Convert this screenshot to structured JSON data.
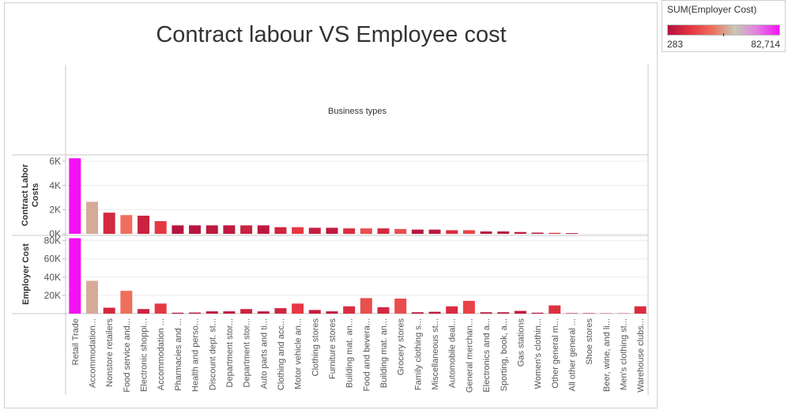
{
  "chart_data": {
    "type": "bar",
    "title": "Contract labour VS Employee cost",
    "column_header": "Business types",
    "categories": [
      "Retail Trade",
      "Accommodation...",
      "Nonstore retailers",
      "Food service and...",
      "Electronic shoppi...",
      "Accommodation ...",
      "Pharmacies and ...",
      "Health and perso...",
      "Discount dept. st...",
      "Department stor...",
      "Department stor...",
      "Auto parts and ti...",
      "Clothing and acc...",
      "Motor vehicle an...",
      "Clothing stores",
      "Furniture stores",
      "Building mat. an...",
      "Food and bevera...",
      "Building mat. an...",
      "Grocery stores",
      "Family clothing s...",
      "Miscellaneous st...",
      "Automobile deal...",
      "General merchan...",
      "Electronics and a...",
      "Sporting, book, a...",
      "Gas stations",
      "Women's clothin...",
      "Other general m...",
      "All other general ...",
      "Shoe stores",
      "Beer, wine, and li...",
      "Men's clothing st...",
      "Warehouse clubs..."
    ],
    "series": [
      {
        "name": "Contract Labor Costs",
        "yticks": [
          "0K",
          "2K",
          "4K",
          "6K"
        ],
        "ylim": [
          0,
          6400
        ],
        "values": [
          6250,
          2650,
          1750,
          1550,
          1500,
          1050,
          700,
          700,
          700,
          700,
          700,
          700,
          550,
          550,
          500,
          500,
          450,
          450,
          450,
          400,
          350,
          350,
          300,
          300,
          200,
          200,
          150,
          100,
          80,
          60,
          0,
          0,
          0,
          0
        ]
      },
      {
        "name": "Employer Cost",
        "yticks": [
          "20K",
          "40K",
          "60K",
          "80K"
        ],
        "ylim": [
          0,
          84000
        ],
        "values": [
          82714,
          36000,
          6500,
          25000,
          5000,
          11000,
          1000,
          1200,
          2500,
          2500,
          5000,
          2500,
          6000,
          11000,
          4000,
          2500,
          8000,
          17000,
          7000,
          16500,
          1500,
          2000,
          8000,
          14000,
          1500,
          1500,
          3000,
          1000,
          9000,
          500,
          500,
          300,
          283,
          8000
        ]
      }
    ],
    "color_legend": {
      "title": "SUM(Employer Cost)",
      "min_label": "283",
      "max_label": "82,714",
      "min_value": 283,
      "max_value": 82714,
      "stops": [
        "#b3133f",
        "#e43440",
        "#ef6f5c",
        "#c8c8b4",
        "#e37ee3",
        "#f312f3"
      ]
    }
  }
}
